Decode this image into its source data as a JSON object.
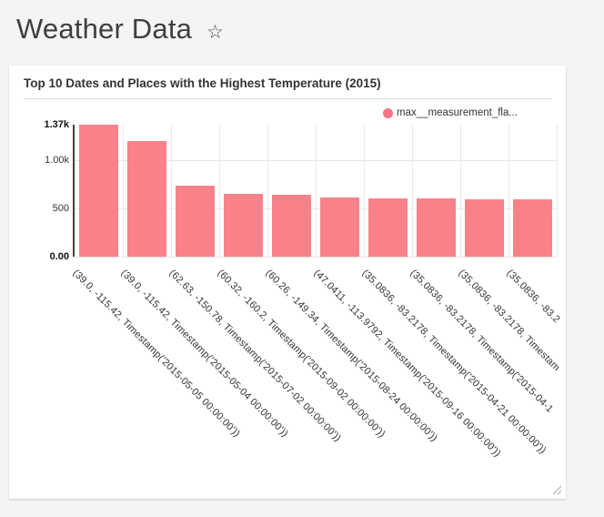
{
  "page": {
    "title": "Weather Data",
    "star_icon": "☆"
  },
  "card": {
    "title": "Top 10 Dates and Places with the Highest Temperature (2015)"
  },
  "chart_data": {
    "type": "bar",
    "title": "Top 10 Dates and Places with the Highest Temperature (2015)",
    "legend_entries": [
      "max__measurement_fla..."
    ],
    "legend_position": "top-right",
    "grid": true,
    "bar_color": "#f8818a",
    "legend_dot_color": "#f8737f",
    "ylim": [
      0,
      1370
    ],
    "yticks": [
      {
        "label": "0.00",
        "value": 0,
        "bold": true
      },
      {
        "label": "500",
        "value": 500,
        "bold": false
      },
      {
        "label": "1.00k",
        "value": 1000,
        "bold": false
      },
      {
        "label": "1.37k",
        "value": 1370,
        "bold": true
      }
    ],
    "xlabel": "",
    "ylabel": "",
    "categories": [
      "(39.0, -115.42, Timestamp('2015-05-05 00:00:00'))",
      "(39.0, -115.42, Timestamp('2015-05-04 00:00:00'))",
      "(62.63, -150.78, Timestamp('2015-07-02 00:00:00'))",
      "(60.32, -160.2, Timestamp('2015-09-02 00:00:00'))",
      "(60.26, -149.34, Timestamp('2015-08-24 00:00:00'))",
      "(47.0411, -113.9792, Timestamp('2015-09-16 00:00:00'))",
      "(35.0836, -83.2178, Timestamp('2015-04-21 00:00:00'))",
      "(35.0836, -83.2178, Timestamp('2015-04-1",
      "(35.0836, -83.2178, Timestam",
      "(35.0836, -83.2"
    ],
    "values": [
      1370,
      1200,
      735,
      654,
      644,
      615,
      606,
      601,
      596,
      591
    ]
  }
}
